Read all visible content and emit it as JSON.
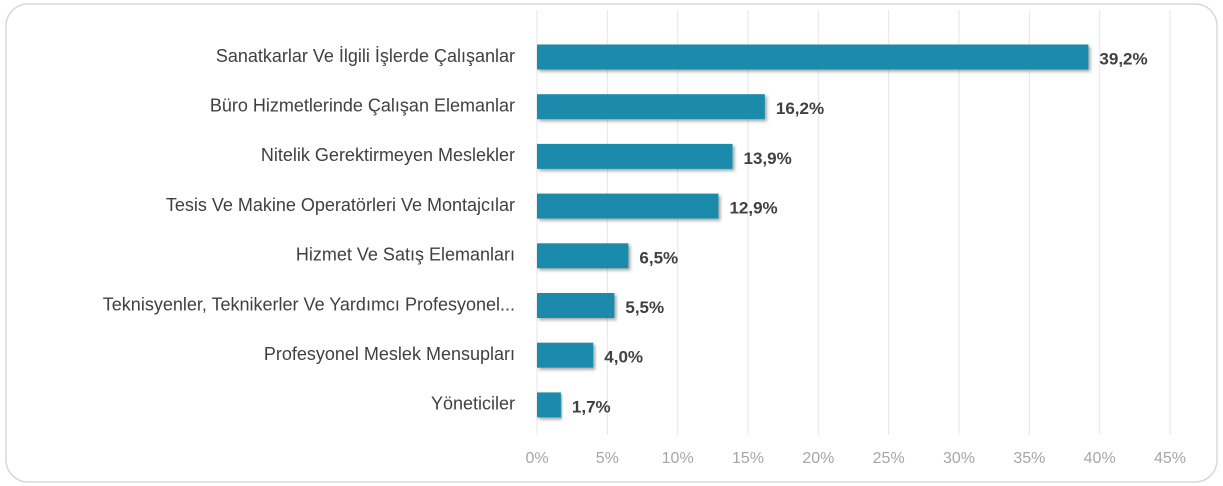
{
  "chart_data": {
    "type": "hbar",
    "categories": [
      "Sanatkarlar Ve İlgili İşlerde Çalışanlar",
      "Büro Hizmetlerinde Çalışan Elemanlar",
      "Nitelik Gerektirmeyen Meslekler",
      "Tesis Ve Makine Operatörleri Ve Montajcılar",
      "Hizmet Ve Satış Elemanları",
      "Teknisyenler, Teknikerler Ve Yardımcı Profesyonel...",
      "Profesyonel Meslek Mensupları",
      "Yöneticiler"
    ],
    "values": [
      39.2,
      16.2,
      13.9,
      12.9,
      6.5,
      5.5,
      4.0,
      1.7
    ],
    "value_labels": [
      "39,2%",
      "16,2%",
      "13,9%",
      "12,9%",
      "6,5%",
      "5,5%",
      "4,0%",
      "1,7%"
    ],
    "color": "#1f8bab",
    "xlim": [
      0,
      45
    ],
    "xticks": [
      {
        "value": 0,
        "label": "0%"
      },
      {
        "value": 5,
        "label": "5%"
      },
      {
        "value": 10,
        "label": "10%"
      },
      {
        "value": 15,
        "label": "15%"
      },
      {
        "value": 20,
        "label": "20%"
      },
      {
        "value": 25,
        "label": "25%"
      },
      {
        "value": 30,
        "label": "30%"
      },
      {
        "value": 35,
        "label": "35%"
      },
      {
        "value": 40,
        "label": "40%"
      },
      {
        "value": 45,
        "label": "45%"
      }
    ],
    "grid": true
  }
}
